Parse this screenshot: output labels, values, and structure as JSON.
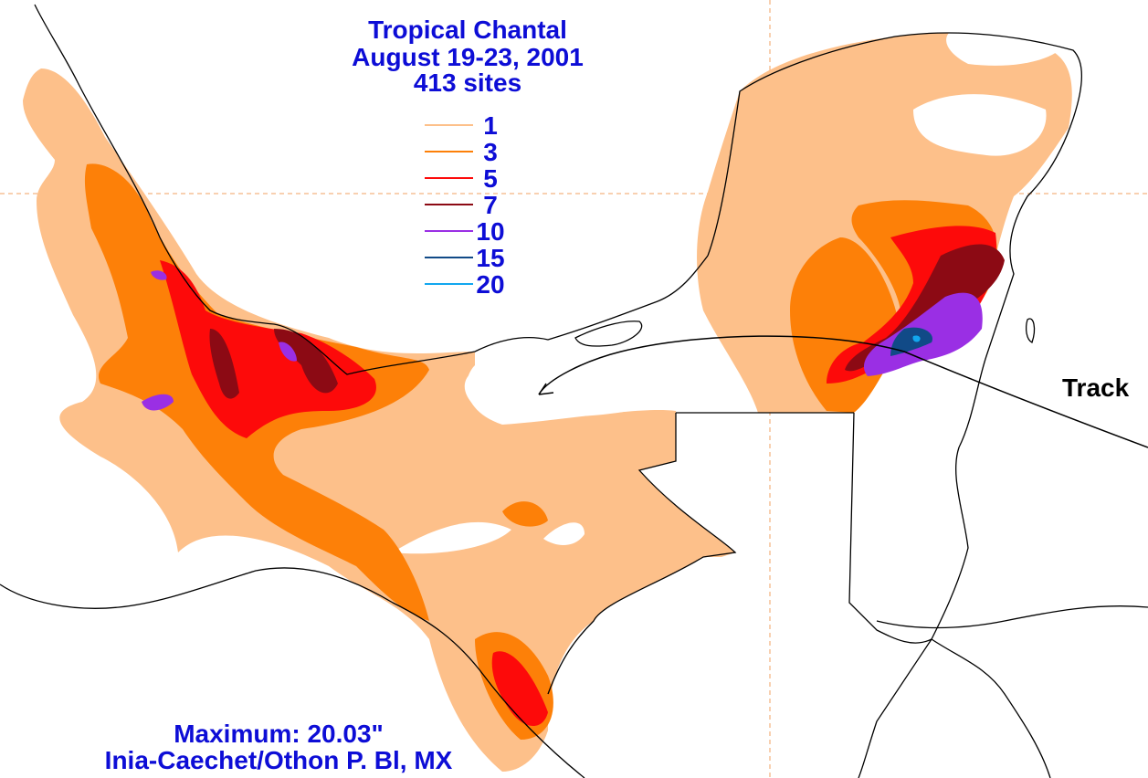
{
  "title": {
    "line1": "Tropical Chantal",
    "line2": "August 19-23, 2001",
    "line3": "413 sites"
  },
  "legend": [
    {
      "label": "1",
      "color": "#fdc08a"
    },
    {
      "label": "3",
      "color": "#fd8008"
    },
    {
      "label": "5",
      "color": "#fd0a0a"
    },
    {
      "label": "7",
      "color": "#8c0a14"
    },
    {
      "label": "10",
      "color": "#9a2fe4"
    },
    {
      "label": "15",
      "color": "#114a87"
    },
    {
      "label": "20",
      "color": "#12a7ef"
    }
  ],
  "track_label": "Track",
  "maximum": {
    "line1": "Maximum:  20.03\"",
    "line2": "Inia-Caechet/Othon P. Bl, MX"
  },
  "colors": {
    "text": "#0d0dd6",
    "gridline": "#f0a060",
    "coastline": "#000000"
  }
}
